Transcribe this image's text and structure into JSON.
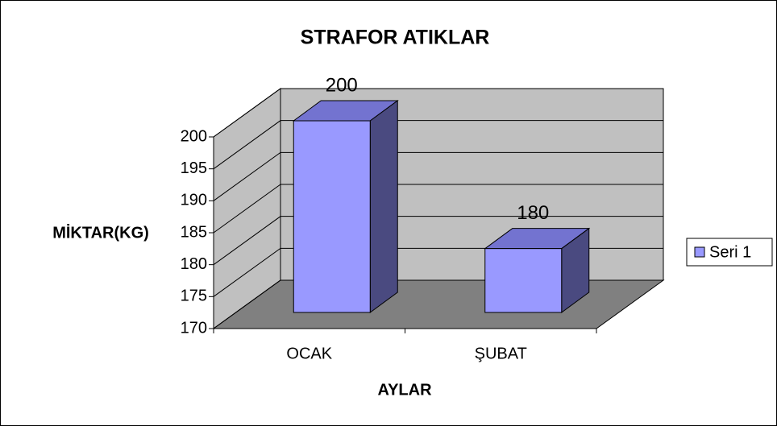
{
  "chart_data": {
    "type": "bar3d",
    "title": "STRAFOR ATIKLAR",
    "x_label": "AYLAR",
    "y_label": "MİKTAR(KG)",
    "categories": [
      "OCAK",
      "ŞUBAT"
    ],
    "series": [
      {
        "name": "Seri 1",
        "color": "#9999ff",
        "values": [
          200,
          180
        ]
      }
    ],
    "ylim": [
      170,
      200
    ],
    "yticks": [
      170,
      175,
      180,
      185,
      190,
      195,
      200
    ],
    "grid": true,
    "legend": "right"
  }
}
